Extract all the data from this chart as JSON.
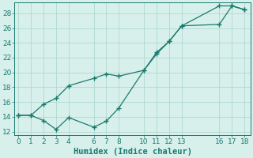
{
  "xlabel": "Humidex (Indice chaleur)",
  "line1_x": [
    0,
    1,
    2,
    3,
    4,
    6,
    7,
    8,
    10,
    11,
    12,
    13,
    16,
    17,
    18
  ],
  "line1_y": [
    14.2,
    14.2,
    15.7,
    16.5,
    18.2,
    19.2,
    19.8,
    19.5,
    20.3,
    22.7,
    24.2,
    26.3,
    26.5,
    29.0,
    28.5
  ],
  "line2_x": [
    0,
    1,
    2,
    3,
    4,
    6,
    7,
    8,
    10,
    11,
    12,
    13,
    16,
    17,
    18
  ],
  "line2_y": [
    14.2,
    14.2,
    13.5,
    12.3,
    13.9,
    12.6,
    13.4,
    15.2,
    20.3,
    22.5,
    24.2,
    26.3,
    29.0,
    29.0,
    28.5
  ],
  "line_color": "#1a7a6e",
  "bg_color": "#d8f0ec",
  "grid_color": "#b0d8d0",
  "xlim": [
    -0.3,
    18.5
  ],
  "ylim": [
    11.5,
    29.5
  ],
  "xticks": [
    0,
    1,
    2,
    3,
    4,
    6,
    7,
    8,
    10,
    11,
    12,
    13,
    16,
    17,
    18
  ],
  "yticks": [
    12,
    14,
    16,
    18,
    20,
    22,
    24,
    26,
    28
  ],
  "tick_fontsize": 6.5,
  "xlabel_fontsize": 7.5
}
